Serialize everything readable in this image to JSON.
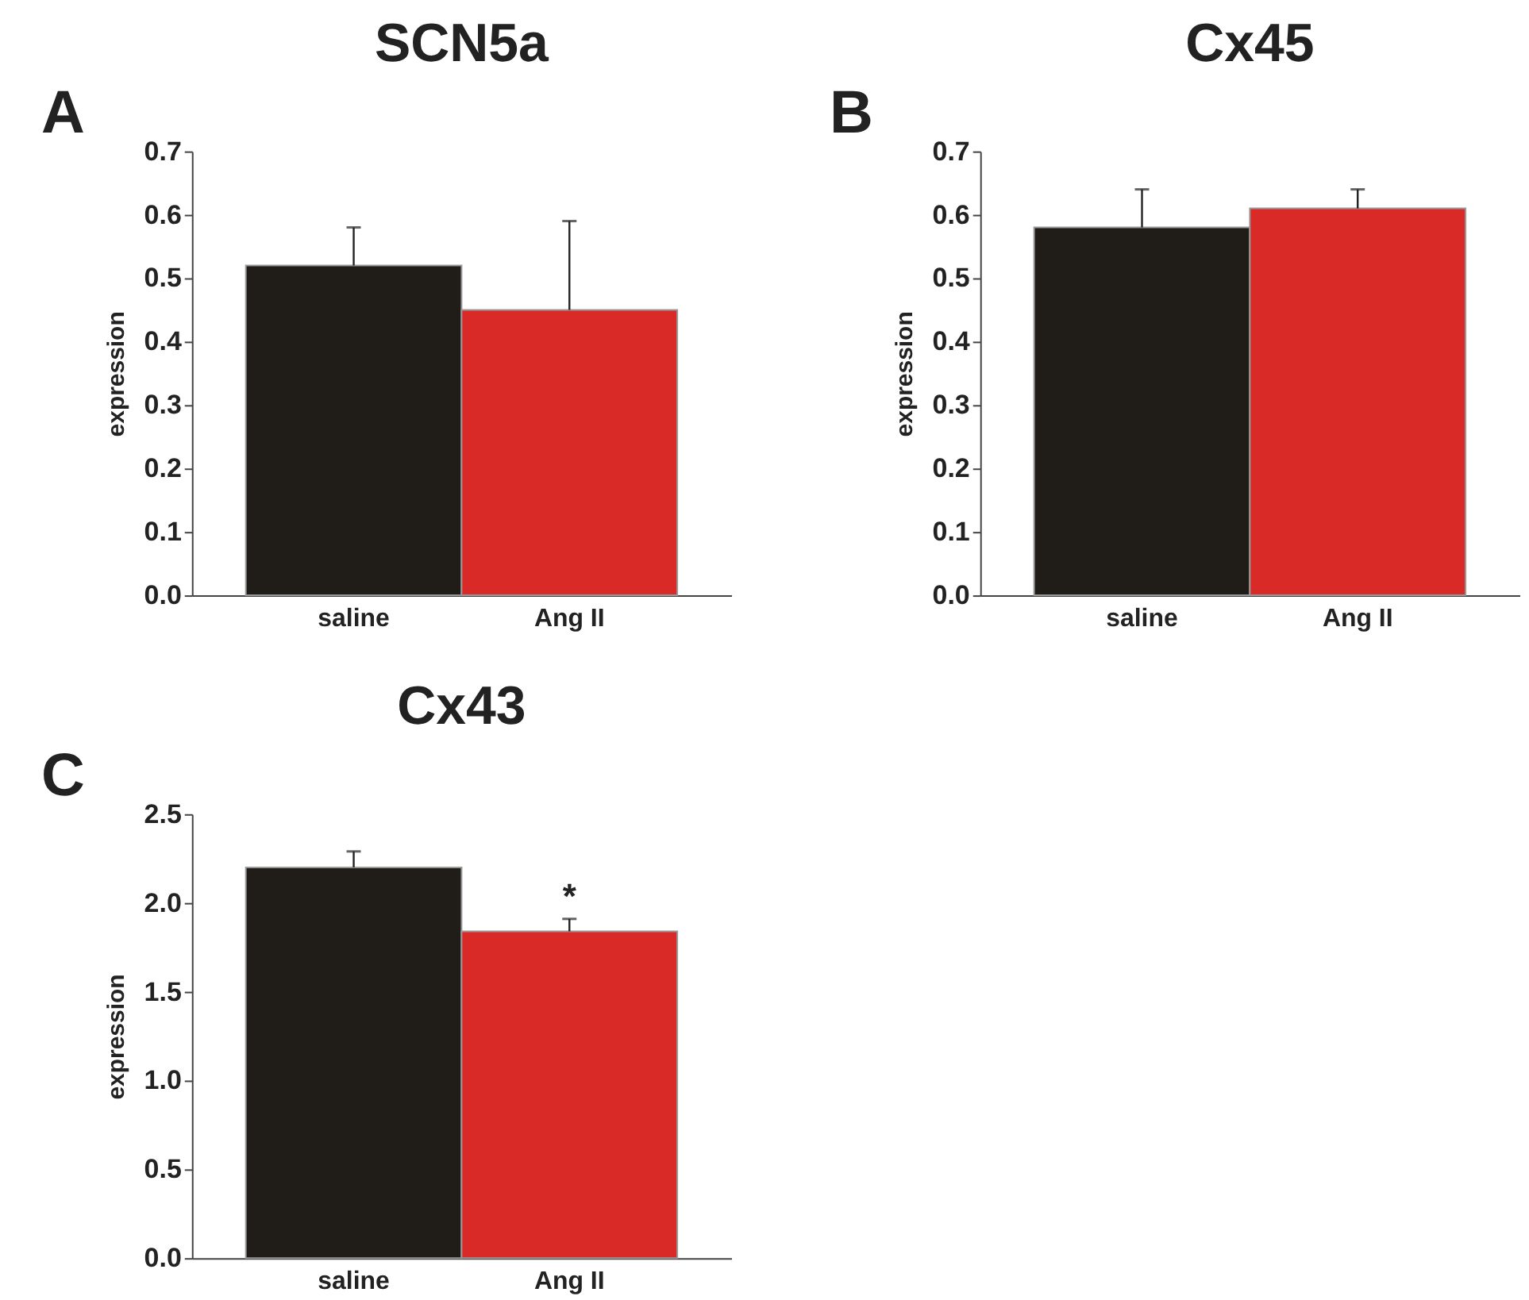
{
  "chart_data": [
    {
      "type": "bar",
      "title": "SCN5a",
      "ylabel": "expression",
      "categories": [
        "saline",
        "Ang II"
      ],
      "values": [
        0.52,
        0.45
      ],
      "colors": [
        "#201d18",
        "#d92a27"
      ],
      "errors": [
        [
          0.52,
          0.58
        ],
        [
          0.45,
          0.59
        ]
      ],
      "ylim": [
        0,
        0.7
      ],
      "yticks": [
        {
          "value": 0,
          "label": "0.0"
        },
        {
          "value": 0.1,
          "label": "0.1"
        },
        {
          "value": 0.2,
          "label": "0.2"
        },
        {
          "value": 0.3,
          "label": "0.3"
        },
        {
          "value": 0.4,
          "label": "0.4"
        },
        {
          "value": 0.5,
          "label": "0.5"
        },
        {
          "value": 0.6,
          "label": "0.6"
        },
        {
          "value": 0.7,
          "label": "0.7"
        }
      ],
      "grid": false,
      "annotations": [
        "A"
      ]
    },
    {
      "type": "bar",
      "title": "Cx45",
      "ylabel": "expression",
      "categories": [
        "saline",
        "Ang II"
      ],
      "values": [
        0.58,
        0.61
      ],
      "colors": [
        "#201d18",
        "#d92a27"
      ],
      "errors": [
        [
          0.58,
          0.64
        ],
        [
          0.61,
          0.64
        ]
      ],
      "ylim": [
        0,
        0.7
      ],
      "yticks": [
        {
          "value": 0,
          "label": "0.0"
        },
        {
          "value": 0.1,
          "label": "0.1"
        },
        {
          "value": 0.2,
          "label": "0.2"
        },
        {
          "value": 0.3,
          "label": "0.3"
        },
        {
          "value": 0.4,
          "label": "0.4"
        },
        {
          "value": 0.5,
          "label": "0.5"
        },
        {
          "value": 0.6,
          "label": "0.6"
        },
        {
          "value": 0.7,
          "label": "0.7"
        }
      ],
      "grid": false,
      "annotations": [
        "B"
      ]
    },
    {
      "type": "bar",
      "title": "Cx43",
      "ylabel": "expression",
      "categories": [
        "saline",
        "Ang II"
      ],
      "values": [
        2.2,
        1.84
      ],
      "colors": [
        "#201d18",
        "#d92a27"
      ],
      "errors": [
        [
          2.2,
          2.29
        ],
        [
          1.84,
          1.91
        ]
      ],
      "ylim": [
        0,
        2.5
      ],
      "yticks": [
        {
          "value": 0,
          "label": "0.0"
        },
        {
          "value": 0.5,
          "label": "0.5"
        },
        {
          "value": 1,
          "label": "1.0"
        },
        {
          "value": 1.5,
          "label": "1.5"
        },
        {
          "value": 2,
          "label": "2.0"
        },
        {
          "value": 2.5,
          "label": "2.5"
        }
      ],
      "grid": false,
      "annotations": [
        "C",
        {
          "text": "*",
          "x": "Ang II",
          "y": 1.91
        }
      ]
    }
  ]
}
